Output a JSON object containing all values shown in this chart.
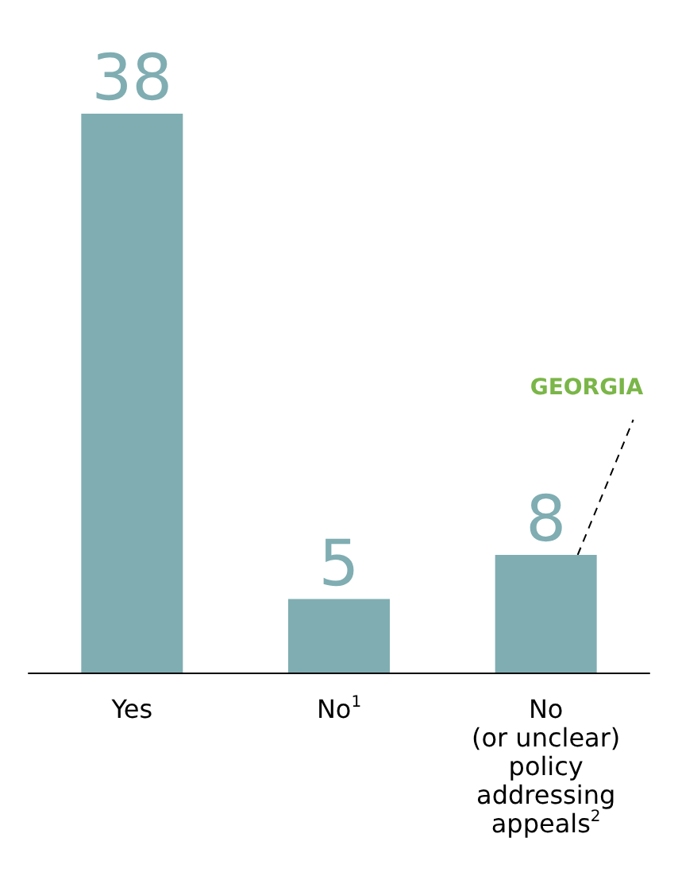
{
  "chart_data": {
    "type": "bar",
    "categories": [
      "Yes",
      "No$^{1}$",
      "No\n(or unclear)\npolicy\naddressing\nappeals$^{2}$"
    ],
    "values": [
      38,
      5,
      8
    ],
    "color": "#7fadb2",
    "data_labels": true,
    "annotations": [
      "GEORGIA"
    ]
  }
}
